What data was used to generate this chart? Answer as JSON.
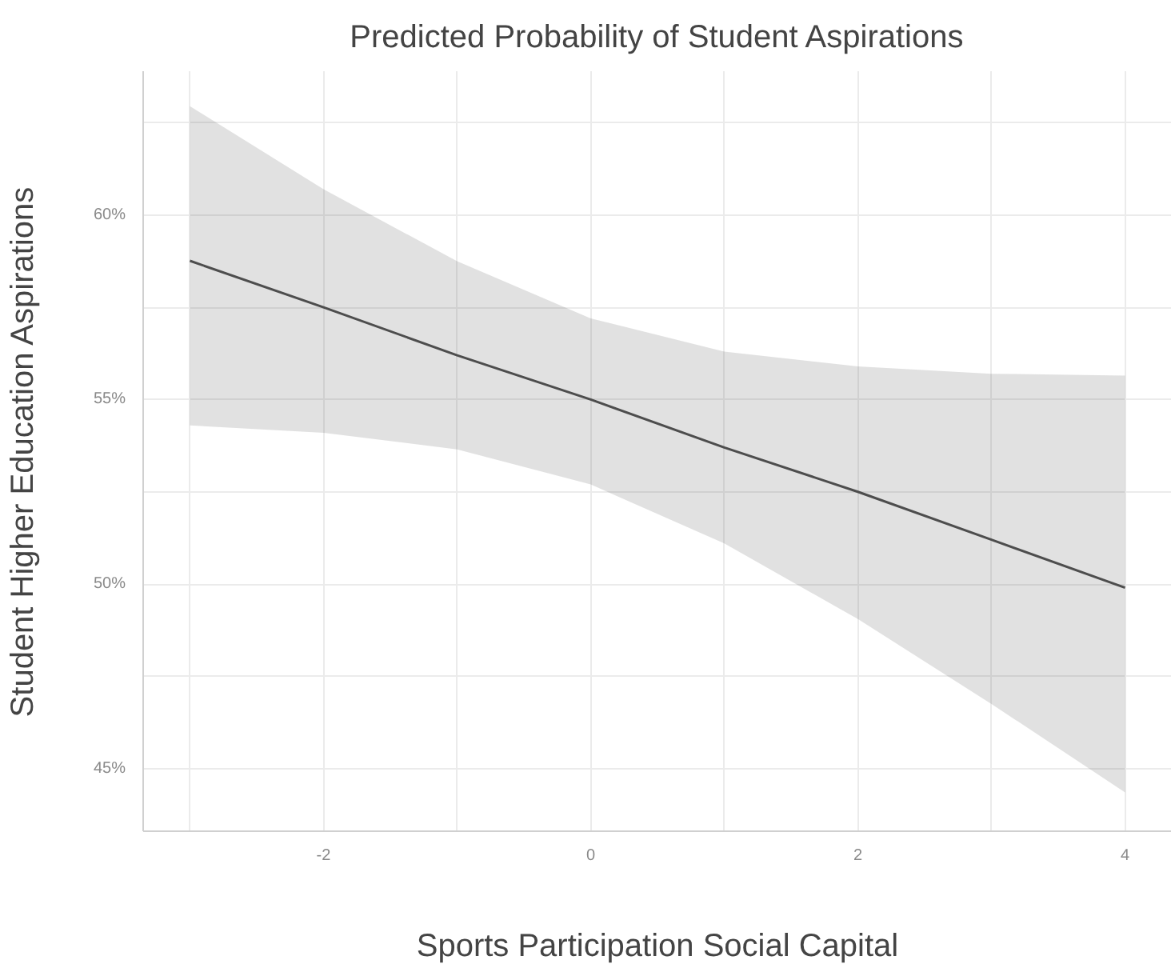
{
  "chart_data": {
    "type": "line",
    "title": "Predicted Probability of Student Aspirations",
    "xlabel": "Sports Participation Social Capital",
    "ylabel": "Student Higher Education Aspirations",
    "x": [
      -3,
      -2,
      -1,
      0,
      1,
      2,
      3,
      4
    ],
    "series": [
      {
        "color": "#4d4d4d",
        "values": [
          58.76,
          57.5,
          56.2,
          55.0,
          53.7,
          52.5,
          51.2,
          49.9
        ],
        "lower": [
          54.3,
          54.1,
          53.65,
          52.7,
          51.1,
          49.05,
          46.75,
          44.35
        ],
        "upper": [
          62.95,
          60.7,
          58.75,
          57.2,
          56.3,
          55.9,
          55.7,
          55.65
        ]
      }
    ],
    "xlim": [
      -3.35,
      4.35
    ],
    "ylim": [
      43.3,
      63.9
    ],
    "xticks": [
      {
        "value": -3,
        "label": null
      },
      -2,
      {
        "value": -1,
        "label": null
      },
      0,
      {
        "value": 1,
        "label": null
      },
      2,
      {
        "value": 3,
        "label": null
      },
      4
    ],
    "yticks": [
      {
        "value": 45,
        "label": "45%"
      },
      {
        "value": 47.5,
        "label": null
      },
      {
        "value": 50,
        "label": "50%"
      },
      {
        "value": 52.5,
        "label": null
      },
      {
        "value": 55,
        "label": "55%"
      },
      {
        "value": 57.5,
        "label": null
      },
      {
        "value": 60,
        "label": "60%"
      },
      {
        "value": 62.5,
        "label": null
      }
    ],
    "grid": true,
    "marker": "none",
    "line_style": "solid"
  }
}
